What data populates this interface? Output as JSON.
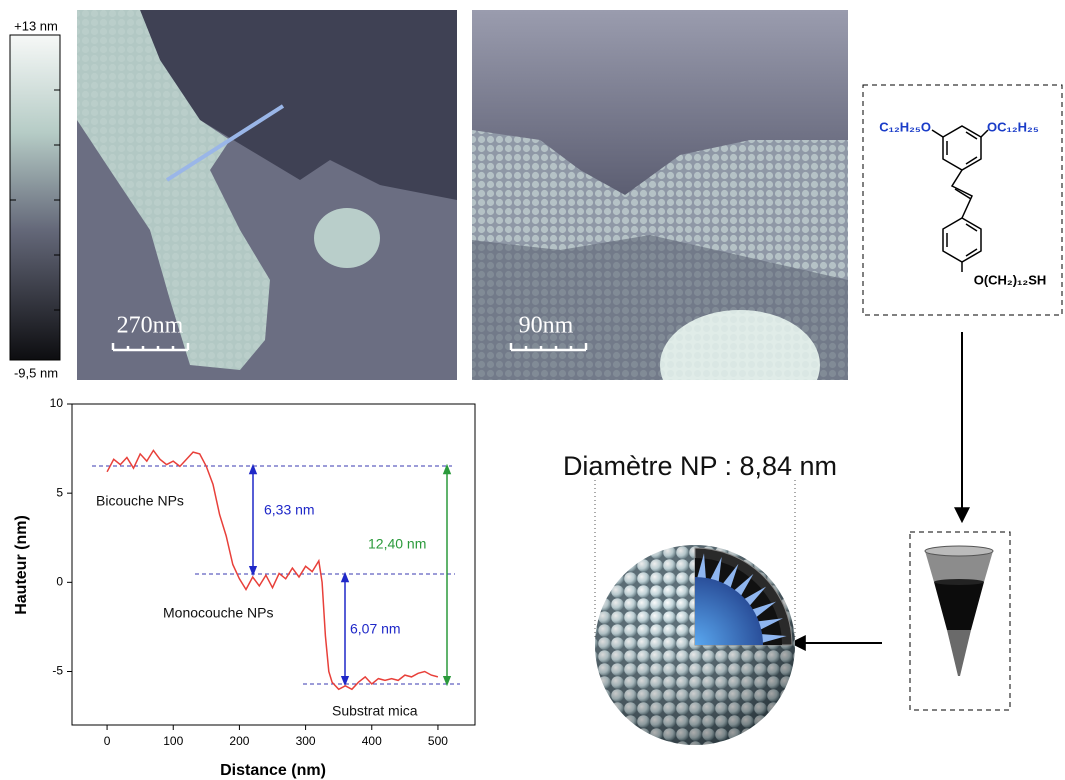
{
  "colorbar": {
    "max_label": "+13 nm",
    "min_label": "-9,5 nm"
  },
  "images": [
    {
      "scale_label": "270nm"
    },
    {
      "scale_label": "90nm"
    }
  ],
  "molecule": {
    "left_group": "C₁₂H₂₅O",
    "right_group": "OC₁₂H₂₅",
    "bottom_group": "O(CH₂)₁₂SH"
  },
  "nanoparticle": {
    "title": "Diamètre NP : 8,84 nm"
  },
  "chart_data": {
    "type": "line",
    "xlabel": "Distance (nm)",
    "ylabel": "Hauteur (nm)",
    "x": [
      0,
      10,
      20,
      30,
      40,
      50,
      60,
      70,
      80,
      90,
      100,
      110,
      120,
      130,
      140,
      150,
      160,
      170,
      180,
      190,
      200,
      210,
      220,
      230,
      240,
      250,
      260,
      270,
      280,
      290,
      300,
      310,
      320,
      325,
      330,
      335,
      340,
      350,
      360,
      370,
      380,
      390,
      400,
      410,
      420,
      430,
      440,
      450,
      460,
      470,
      480,
      490,
      500
    ],
    "series": [
      {
        "color": "#e8403a",
        "values": [
          6.2,
          6.9,
          6.6,
          7.0,
          6.4,
          7.2,
          6.8,
          7.4,
          6.9,
          6.6,
          6.8,
          6.5,
          6.9,
          7.3,
          7.2,
          6.5,
          5.5,
          3.8,
          2.6,
          1.0,
          0.2,
          -0.4,
          0.3,
          -0.2,
          0.4,
          -0.3,
          0.5,
          0.2,
          0.8,
          0.3,
          0.9,
          0.6,
          1.2,
          0.0,
          -3.0,
          -5.0,
          -5.6,
          -6.0,
          -5.8,
          -6.0,
          -5.6,
          -5.3,
          -5.7,
          -5.4,
          -5.5,
          -5.4,
          -5.5,
          -5.2,
          -5.3,
          -5.1,
          -5.0,
          -5.2,
          -5.3
        ]
      }
    ],
    "xlim": [
      -53,
      556
    ],
    "ylim": [
      -8,
      10
    ],
    "xticks": [
      0,
      100,
      200,
      300,
      400,
      500
    ],
    "yticks": [
      -5,
      0,
      5,
      10
    ],
    "annotations": [
      "Bicouche NPs",
      "Monocouche NPs",
      "Substrat mica",
      "6,33 nm",
      "6,07 nm",
      "12,40 nm"
    ]
  }
}
